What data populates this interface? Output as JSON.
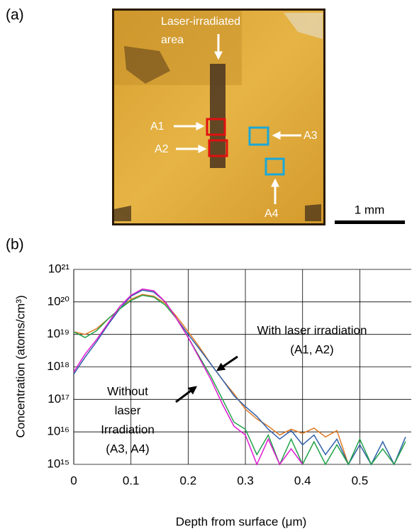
{
  "panel_a": {
    "label": "(a)",
    "area_label_1": "Laser-irradiated",
    "area_label_2": "area",
    "markers": [
      "A1",
      "A2",
      "A3",
      "A4"
    ],
    "scale_bar": "1 mm"
  },
  "panel_b": {
    "label": "(b)"
  },
  "chart_data": {
    "type": "line",
    "x_label": "Depth from surface (μm)",
    "y_label": "Concentration (atoms/cm³)",
    "log_y": true,
    "grid": true,
    "xlim": [
      0,
      0.59
    ],
    "xticks": [
      0,
      0.1,
      0.2,
      0.3,
      0.4,
      0.5
    ],
    "ylim": [
      1000000000000000.0,
      1e+21
    ],
    "yticks": [
      {
        "value": 1000000000000000.0,
        "label": "10¹⁵"
      },
      {
        "value": 1e+16,
        "label": "10¹⁶"
      },
      {
        "value": 1e+17,
        "label": "10¹⁷"
      },
      {
        "value": 1e+18,
        "label": "10¹⁸"
      },
      {
        "value": 1e+19,
        "label": "10¹⁹"
      },
      {
        "value": 1e+20,
        "label": "10²⁰"
      },
      {
        "value": 1e+21,
        "label": "10²¹"
      }
    ],
    "x": [
      0,
      0.02,
      0.04,
      0.06,
      0.08,
      0.1,
      0.12,
      0.14,
      0.16,
      0.18,
      0.2,
      0.22,
      0.24,
      0.26,
      0.28,
      0.3,
      0.32,
      0.34,
      0.36,
      0.38,
      0.4,
      0.42,
      0.44,
      0.46,
      0.48,
      0.5,
      0.52,
      0.54,
      0.56,
      0.58
    ],
    "series": [
      {
        "color": "#e07b25",
        "values": [
          1.2e+19,
          1e+19,
          1.5e+19,
          3e+19,
          6e+19,
          1.2e+20,
          1.7e+20,
          1.5e+20,
          9e+19,
          3.5e+19,
          1.2e+19,
          4e+18,
          1.2e+18,
          4e+17,
          1.5e+17,
          5e+16,
          2.5e+16,
          1.5e+16,
          8000000000000000.0,
          1.2e+16,
          9000000000000000.0,
          1.3e+16,
          7000000000000000.0,
          1.1e+16,
          1000000000000000.0,
          null,
          null,
          null,
          null,
          null
        ]
      },
      {
        "color": "#2f5fa8",
        "values": [
          6e+17,
          2e+18,
          6e+18,
          2e+19,
          6e+19,
          1.5e+20,
          2.3e+20,
          2e+20,
          1e+20,
          3e+19,
          1e+19,
          3.5e+18,
          1.2e+18,
          4e+17,
          1.3e+17,
          6e+16,
          3e+16,
          1.2e+16,
          6000000000000000.0,
          1.1e+16,
          4000000000000000.0,
          8000000000000000.0,
          2000000000000000.0,
          6000000000000000.0,
          1000000000000000.0,
          4000000000000000.0,
          1000000000000000.0,
          5000000000000000.0,
          1000000000000000.0,
          7000000000000000.0
        ]
      },
      {
        "color": "#22a24a",
        "values": [
          1.2e+19,
          8e+18,
          1.3e+19,
          3e+19,
          6e+19,
          1.1e+20,
          1.6e+20,
          1.4e+20,
          8e+19,
          3e+19,
          8e+18,
          2e+18,
          5e+17,
          1e+17,
          2e+16,
          1.2e+16,
          2000000000000000.0,
          8000000000000000.0,
          1000000000000000.0,
          6000000000000000.0,
          1000000000000000.0,
          5000000000000000.0,
          1000000000000000.0,
          4000000000000000.0,
          1000000000000000.0,
          6000000000000000.0,
          1000000000000000.0,
          3000000000000000.0,
          1000000000000000.0,
          5000000000000000.0
        ]
      },
      {
        "color": "#e01ad0",
        "values": [
          7e+17,
          2.5e+18,
          7e+18,
          2.2e+19,
          7e+19,
          1.6e+20,
          2.5e+20,
          2.2e+20,
          1e+20,
          3e+19,
          8e+18,
          1.8e+18,
          4e+17,
          7e+16,
          1.5e+16,
          8000000000000000.0,
          1000000000000000.0,
          6000000000000000.0,
          1000000000000000.0,
          3000000000000000.0,
          1000000000000000.0,
          null,
          null,
          null,
          null,
          null,
          null,
          null,
          null,
          null
        ]
      }
    ],
    "annotations": [
      "With laser irradiation",
      "(A1, A2)",
      "Without",
      "laser",
      "Irradiation",
      "(A3, A4)"
    ]
  }
}
